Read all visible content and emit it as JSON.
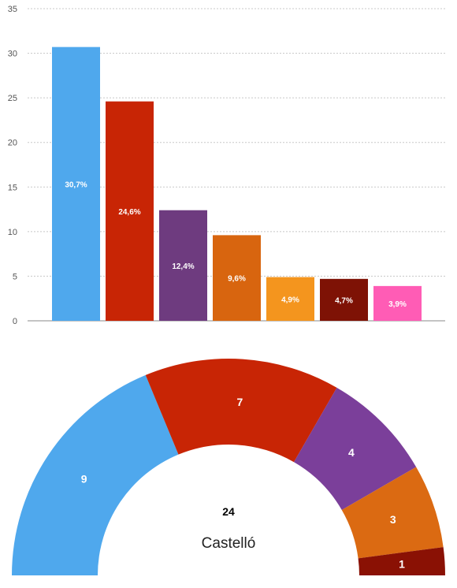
{
  "chart_data": [
    {
      "type": "bar",
      "values": [
        30.7,
        24.6,
        12.4,
        9.6,
        4.9,
        4.7,
        3.9
      ],
      "labels": [
        "30,7%",
        "24,6%",
        "12,4%",
        "9,6%",
        "4,9%",
        "4,7%",
        "3,9%"
      ],
      "colors": [
        "#4fa8ed",
        "#c82505",
        "#6e3b7f",
        "#d8650f",
        "#f4951e",
        "#7e1205",
        "#ff5cb5"
      ],
      "ylim": [
        0,
        35
      ],
      "yticks": [
        "0",
        "5",
        "10",
        "15",
        "20",
        "25",
        "30",
        "35"
      ],
      "ytick_values": [
        0,
        5,
        10,
        15,
        20,
        25,
        30,
        35
      ],
      "grid": true
    },
    {
      "type": "pie",
      "style": "semicircle",
      "values": [
        9,
        7,
        4,
        3,
        1
      ],
      "labels": [
        "9",
        "7",
        "4",
        "3",
        "1"
      ],
      "colors": [
        "#4fa8ed",
        "#c82505",
        "#7b3f9a",
        "#db6a12",
        "#8a1104"
      ],
      "total": "24",
      "center_label": "Castelló"
    }
  ]
}
